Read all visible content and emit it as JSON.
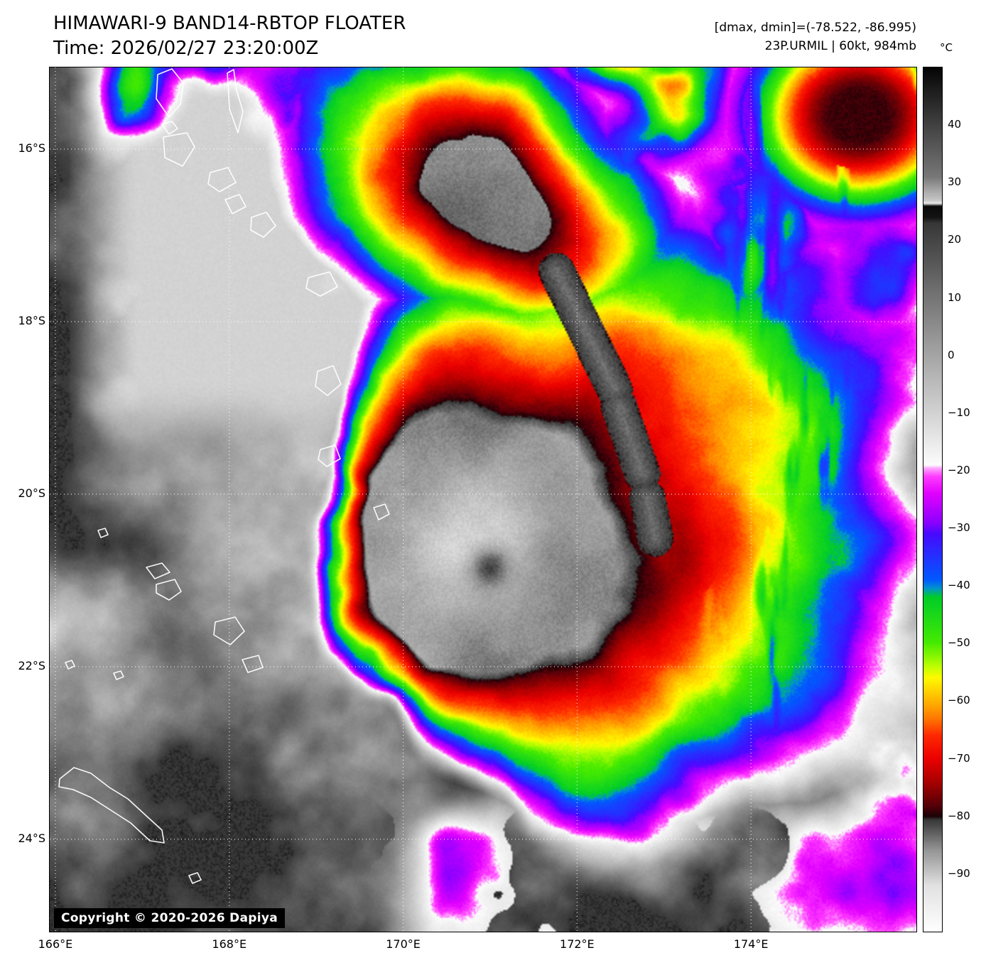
{
  "header": {
    "title": "HIMAWARI-9 BAND14-RBTOP FLOATER",
    "time": "Time: 2026/02/27 23:20:00Z",
    "dminmax": "[dmax, dmin]=(-78.522, -86.995)",
    "storm": "23P.URMIL | 60kt, 984mb"
  },
  "colorbar": {
    "unit": "°C",
    "range": [
      50,
      -100
    ],
    "ticks": [
      {
        "label": "40",
        "value": 40
      },
      {
        "label": "30",
        "value": 30
      },
      {
        "label": "20",
        "value": 20
      },
      {
        "label": "10",
        "value": 10
      },
      {
        "label": "0",
        "value": 0
      },
      {
        "label": "−10",
        "value": -10
      },
      {
        "label": "−20",
        "value": -20
      },
      {
        "label": "−30",
        "value": -30
      },
      {
        "label": "−40",
        "value": -40
      },
      {
        "label": "−50",
        "value": -50
      },
      {
        "label": "−60",
        "value": -60
      },
      {
        "label": "−70",
        "value": -70
      },
      {
        "label": "−80",
        "value": -80
      },
      {
        "label": "−90",
        "value": -90
      }
    ],
    "stops": [
      [
        50,
        "#050505"
      ],
      [
        31,
        "#787878"
      ],
      [
        27,
        "#c8c8c8"
      ],
      [
        26.5,
        "#ebebeb"
      ],
      [
        26,
        "#0a0a0a"
      ],
      [
        24,
        "#141414"
      ],
      [
        23,
        "#373737"
      ],
      [
        0,
        "#a5a5a5"
      ],
      [
        -19,
        "#fcfcfc"
      ],
      [
        -19.5,
        "#ffaaff"
      ],
      [
        -21,
        "#ff3cff"
      ],
      [
        -24,
        "#e100ff"
      ],
      [
        -29,
        "#8c00ff"
      ],
      [
        -31,
        "#460aff"
      ],
      [
        -39,
        "#005aff"
      ],
      [
        -40.5,
        "#0096c8"
      ],
      [
        -42,
        "#00cd28"
      ],
      [
        -50,
        "#46eb00"
      ],
      [
        -54,
        "#beff00"
      ],
      [
        -56,
        "#fffa00"
      ],
      [
        -60,
        "#ffb400"
      ],
      [
        -63,
        "#ff7800"
      ],
      [
        -66,
        "#ff2800"
      ],
      [
        -70,
        "#eb0000"
      ],
      [
        -74,
        "#aa0000"
      ],
      [
        -78,
        "#5a0008"
      ],
      [
        -80,
        "#190206"
      ],
      [
        -80.6,
        "#373737"
      ],
      [
        -86,
        "#969696"
      ],
      [
        -92,
        "#e1e1e1"
      ],
      [
        -100,
        "#ffffff"
      ]
    ]
  },
  "axes": {
    "lat_ticks": [
      {
        "label": "16°S",
        "deg": 16
      },
      {
        "label": "18°S",
        "deg": 18
      },
      {
        "label": "20°S",
        "deg": 20
      },
      {
        "label": "22°S",
        "deg": 22
      },
      {
        "label": "24°S",
        "deg": 24
      }
    ],
    "lon_ticks": [
      {
        "label": "166°E",
        "deg": 166
      },
      {
        "label": "168°E",
        "deg": 168
      },
      {
        "label": "170°E",
        "deg": 170
      },
      {
        "label": "172°E",
        "deg": 172
      },
      {
        "label": "174°E",
        "deg": 174
      }
    ]
  },
  "map": {
    "copyright": "Copyright © 2020-2026 Dapiya"
  }
}
